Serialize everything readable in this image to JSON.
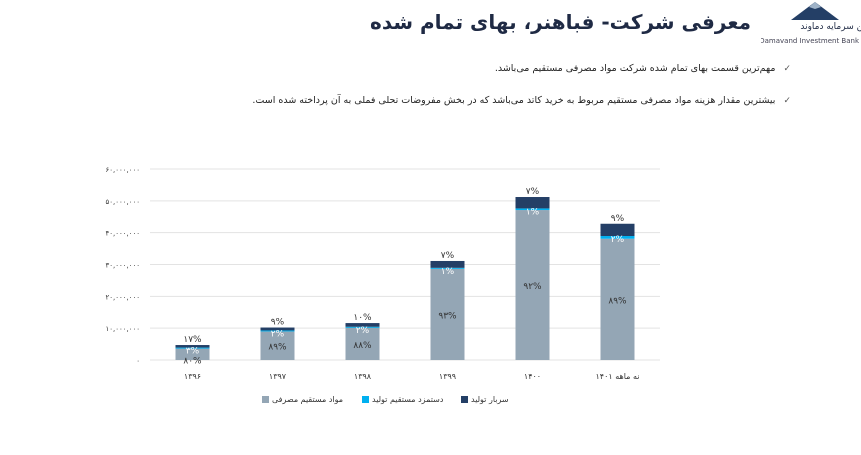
{
  "header": {
    "title": "معرفی شرکت- فباهنر، بهای تمام شده",
    "logo_name": "مین سرمایه دماوند",
    "logo_en": "Damavand Investment Bank"
  },
  "bullets": [
    "مهم‌ترین قسمت بهای تمام شده شرکت مواد مصرفی مستقیم می‌باشد.",
    "بیشترین مقدار هزینه مواد مصرفی مستقیم مربوط به خرید کاتد می‌باشد که در بخش مفروضات تحلی فملی به آن پرداخته شده است."
  ],
  "bullet_icon": "check-icon",
  "chart_data": {
    "type": "bar",
    "stacked": true,
    "categories": [
      "۱۳۹۶",
      "۱۳۹۷",
      "۱۳۹۸",
      "۱۳۹۹",
      "۱۴۰۰",
      "نه ماهه ۱۴۰۱"
    ],
    "totals": [
      4700000,
      10200000,
      11600000,
      30800000,
      51200000,
      42800000
    ],
    "ylim": [
      0,
      60000000
    ],
    "yticks": [
      0,
      10000000,
      20000000,
      30000000,
      40000000,
      50000000,
      60000000
    ],
    "ytick_labels": [
      "۰",
      "۱۰,۰۰۰,۰۰۰",
      "۲۰,۰۰۰,۰۰۰",
      "۳۰,۰۰۰,۰۰۰",
      "۴۰,۰۰۰,۰۰۰",
      "۵۰,۰۰۰,۰۰۰",
      "۶۰,۰۰۰,۰۰۰"
    ],
    "grid": true,
    "legend_position": "bottom",
    "series": [
      {
        "name": "مواد مستقیم مصرفی",
        "color": "#94a6b5",
        "percent": [
          80,
          89,
          88,
          93,
          92,
          89
        ],
        "labels": [
          "۸۰%",
          "۸۹%",
          "۸۸%",
          "۹۳%",
          "۹۲%",
          "۸۹%"
        ]
      },
      {
        "name": "دستمزد مستقیم تولید",
        "color": "#00b0f0",
        "percent": [
          3,
          2,
          2,
          1,
          1,
          2
        ],
        "labels": [
          "۳%",
          "۲%",
          "۲%",
          "۱%",
          "۱%",
          "۲%"
        ]
      },
      {
        "name": "سربار تولید",
        "color": "#243f66",
        "percent": [
          17,
          9,
          10,
          7,
          7,
          9
        ],
        "labels": [
          "۱۷%",
          "۹%",
          "۱۰%",
          "۷%",
          "۷%",
          "۹%"
        ]
      }
    ]
  }
}
